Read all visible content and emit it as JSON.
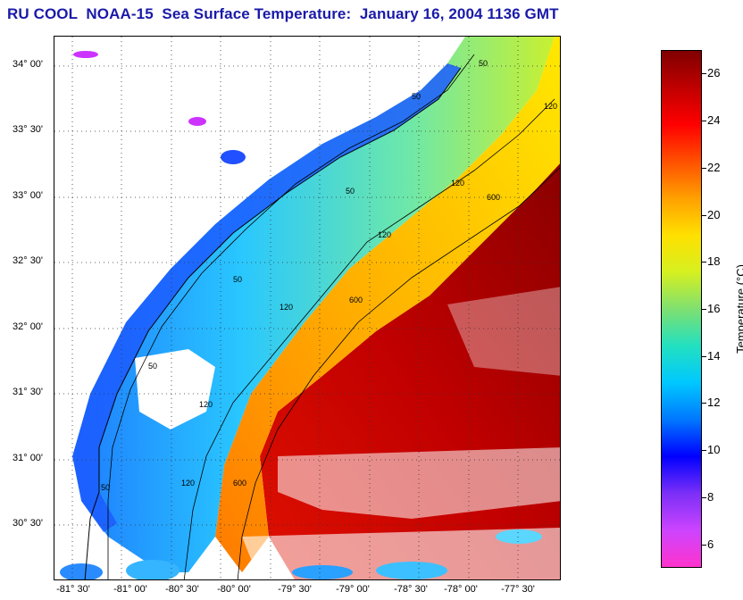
{
  "title": "RU COOL  NOAA-15  Sea Surface Temperature:  January 16, 2004 1136 GMT",
  "map": {
    "lat_ticks": [
      "34° 00'",
      "33° 30'",
      "33° 00'",
      "32° 30'",
      "32° 00'",
      "31° 30'",
      "31° 00'",
      "30° 30'"
    ],
    "lon_ticks": [
      "-81° 30'",
      "-81° 00'",
      "-80° 30'",
      "-80° 00'",
      "-79° 30'",
      "-79° 00'",
      "-78° 30'",
      "-78° 00'",
      "-77° 30'"
    ],
    "contour_labels": [
      "50",
      "50",
      "50",
      "50",
      "50",
      "50",
      "120",
      "120",
      "120",
      "120",
      "120",
      "120",
      "600",
      "600",
      "600"
    ]
  },
  "colorbar": {
    "label": "Temperature (°C)",
    "ticks": [
      "26",
      "24",
      "22",
      "20",
      "18",
      "16",
      "14",
      "12",
      "10",
      "8",
      "6"
    ],
    "range": [
      5,
      27
    ],
    "colors": [
      "#ff33cc",
      "#cc44ff",
      "#7b2ff7",
      "#0000ff",
      "#0078ff",
      "#00c8ff",
      "#22e0c0",
      "#7fe070",
      "#d6f020",
      "#ffe000",
      "#ffa000",
      "#ff5000",
      "#ff0000",
      "#c00000",
      "#800000"
    ]
  }
}
